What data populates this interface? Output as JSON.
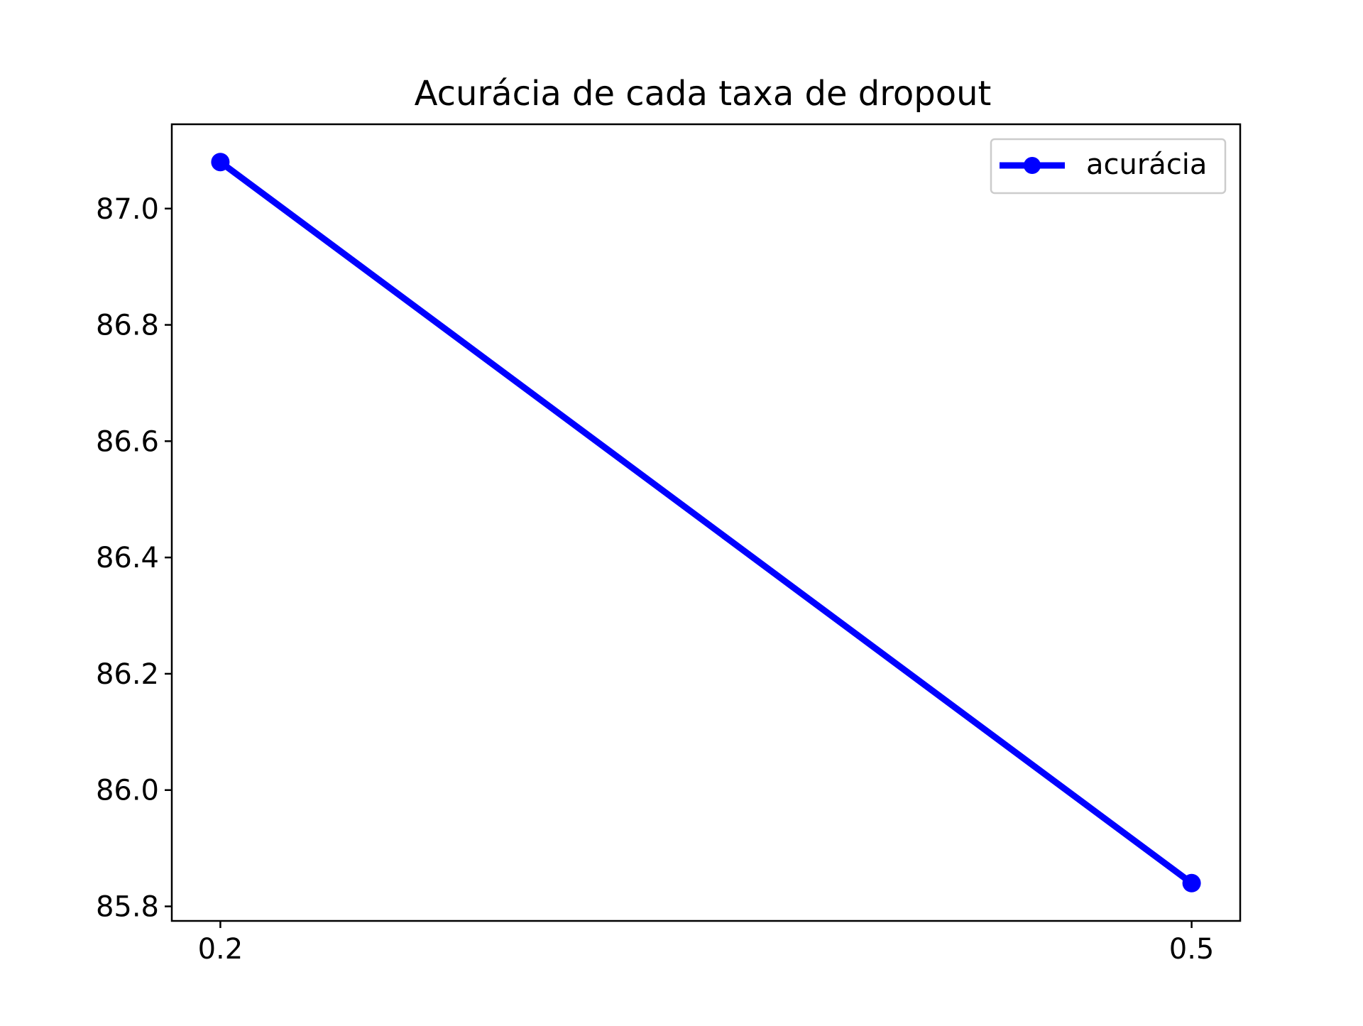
{
  "chart_data": {
    "type": "line",
    "title": "Acurácia de cada taxa de dropout",
    "xlabel": "",
    "ylabel": "",
    "x_ticks": [
      "0.2",
      "0.5"
    ],
    "y_ticks": [
      "85.8",
      "86.0",
      "86.2",
      "86.4",
      "86.6",
      "86.8",
      "87.0"
    ],
    "y_tick_values": [
      85.8,
      86.0,
      86.2,
      86.4,
      86.6,
      86.8,
      87.0
    ],
    "xlim": [
      0.185,
      0.515
    ],
    "ylim": [
      85.775,
      87.145
    ],
    "grid": false,
    "legend_position": "top-right",
    "series": [
      {
        "name": "acurácia",
        "color": "#0000ff",
        "marker": "circle",
        "x": [
          0.2,
          0.5
        ],
        "y": [
          87.08,
          85.84
        ]
      }
    ]
  }
}
